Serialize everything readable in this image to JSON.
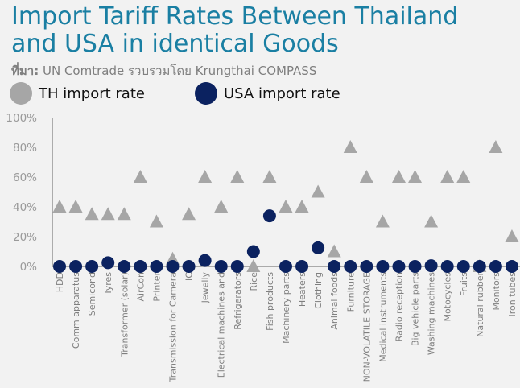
{
  "chart_data": {
    "type": "scatter",
    "title": "Import Tariff Rates Between Thailand and USA in identical Goods",
    "source_prefix": "ที่มา:",
    "source_text": " UN Comtrade รวบรวมโดย Krungthai COMPASS",
    "ylim": [
      0,
      100
    ],
    "yticks": [
      "0%",
      "20%",
      "40%",
      "60%",
      "80%",
      "100%"
    ],
    "categories": [
      "HDD",
      "Comm apparatus",
      "Semicond",
      "Tyres",
      "Transformer (solar)",
      "AirCon",
      "Printer",
      "Transmission for Camera",
      "IC",
      "Jewelly",
      "Electrical machines and",
      "Refrigerators",
      "Rice",
      "Fish products",
      "Machinery parts",
      "Heaters",
      "Clothing",
      "Animal foods",
      "Furniture",
      "NON-VOLATILE STORAGE",
      "Medical instruments",
      "Radio reception",
      "Big vehicle parts",
      "Washing machines",
      "Motocycles",
      "Fruits",
      "Natural rubber",
      "Monitors",
      "Iron tubes"
    ],
    "series": [
      {
        "name": "TH import rate",
        "marker": "triangle",
        "color": "#a6a6a6",
        "values": [
          40,
          40,
          35,
          35,
          35,
          60,
          30,
          5,
          35,
          60,
          40,
          60,
          0,
          60,
          40,
          40,
          50,
          10,
          80,
          60,
          30,
          60,
          60,
          30,
          60,
          60,
          0,
          80,
          20
        ]
      },
      {
        "name": "USA import rate",
        "marker": "circle",
        "color": "#0b2260",
        "values": [
          0,
          0,
          0,
          2.5,
          0,
          0,
          0,
          0,
          0,
          4,
          0,
          0,
          10,
          34,
          0,
          0,
          12.5,
          0,
          0,
          0,
          0,
          0,
          0,
          0.5,
          0,
          0,
          0,
          0,
          0
        ]
      }
    ],
    "grid": false,
    "legend_position": "top-left"
  }
}
